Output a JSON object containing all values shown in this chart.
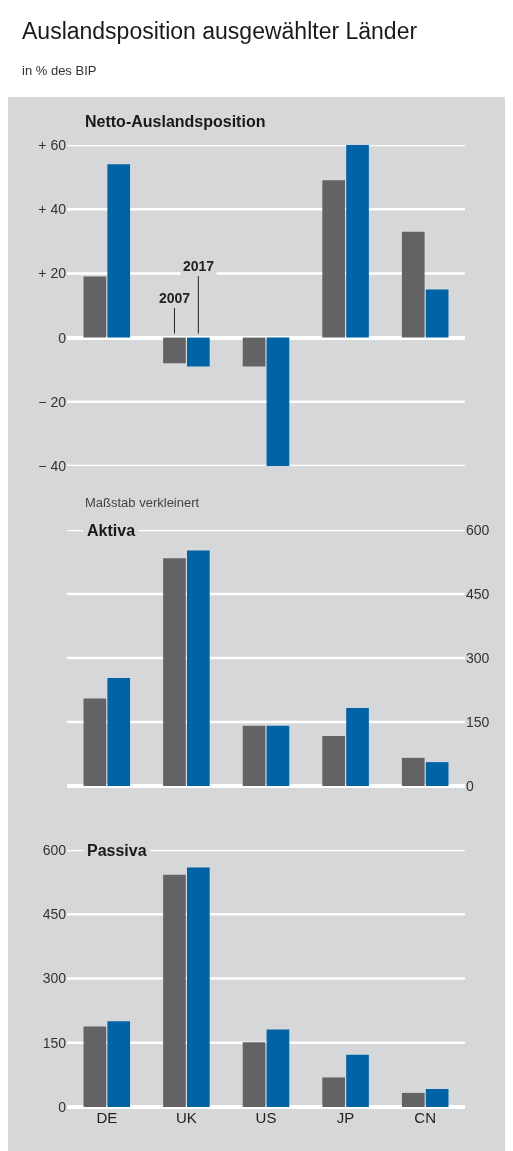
{
  "chart_data": [
    {
      "type": "bar",
      "title": "Auslandsposition ausgewählter Länder",
      "subtitle": "in % des BIP",
      "annotations": [
        "Netto-Auslandsposition"
      ],
      "categories": [
        null,
        null,
        null,
        null,
        null
      ],
      "series": [
        {
          "name": "2007",
          "color": "#636366",
          "values": [
            19,
            -8,
            -9,
            49,
            33
          ]
        },
        {
          "name": "2017",
          "color": "#0063a6",
          "values": [
            54,
            -9,
            -40,
            60,
            15
          ]
        }
      ],
      "ylim": [
        -40,
        60
      ],
      "yticks": [
        {
          "value": -40,
          "label": "− 40"
        },
        {
          "value": -20,
          "label": "− 20"
        },
        0,
        {
          "value": 20,
          "label": "+ 20"
        },
        {
          "value": 40,
          "label": "+ 40"
        },
        {
          "value": 60,
          "label": "+ 60"
        }
      ],
      "grid": "y",
      "legend": false,
      "tick_labels": "y"
    },
    {
      "type": "bar",
      "title": "Aktiva",
      "annotations": [
        "Maßstab verkleinert"
      ],
      "categories": [
        null,
        null,
        null,
        null,
        null
      ],
      "series": [
        {
          "color": "#636366",
          "values": [
            205,
            534,
            141,
            117,
            66
          ]
        },
        {
          "color": "#0063a6",
          "values": [
            253,
            552,
            141,
            183,
            56
          ]
        }
      ],
      "ylim": [
        0,
        600
      ],
      "yticks": [
        0,
        150,
        300,
        450,
        600
      ],
      "grid": "y",
      "legend": false,
      "tick_labels": "y"
    },
    {
      "type": "bar",
      "title": "Passiva",
      "categories": [
        "DE",
        "UK",
        "US",
        "JP",
        "CN"
      ],
      "series": [
        {
          "color": "#636366",
          "values": [
            188,
            542,
            151,
            69,
            33
          ]
        },
        {
          "color": "#0063a6",
          "values": [
            200,
            559,
            181,
            122,
            42
          ]
        }
      ],
      "ylim": [
        0,
        600
      ],
      "yticks": [
        0,
        150,
        300,
        450,
        600
      ],
      "grid": "y",
      "legend": false
    }
  ]
}
